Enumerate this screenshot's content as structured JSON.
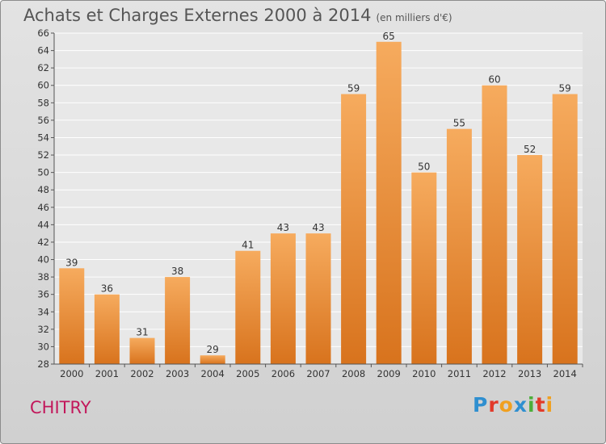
{
  "header": {
    "title": "Achats et Charges Externes 2000 à 2014",
    "subtitle": "(en milliers d'€)"
  },
  "footer": {
    "town": "CHITRY",
    "logo_letters": [
      "P",
      "r",
      "o",
      "x",
      "i",
      "t",
      "i"
    ],
    "logo_colors": [
      "#2f8fd0",
      "#e23a2a",
      "#f0a020",
      "#2f8fd0",
      "#4cae3a",
      "#e23a2a",
      "#f0a020"
    ]
  },
  "colors": {
    "bar_top": "#f6ab5e",
    "bar_bottom": "#d8731d",
    "plot_bg_top": "#e8e8e8",
    "plot_bg_bottom": "#e8e8e8"
  },
  "chart_data": {
    "type": "bar",
    "categories": [
      "2000",
      "2001",
      "2002",
      "2003",
      "2004",
      "2005",
      "2006",
      "2007",
      "2008",
      "2009",
      "2010",
      "2011",
      "2012",
      "2013",
      "2014"
    ],
    "values": [
      39,
      36,
      31,
      38,
      29,
      41,
      43,
      43,
      59,
      65,
      50,
      55,
      60,
      52,
      59
    ],
    "value_labels": [
      "39",
      "36",
      "31",
      "38",
      "29",
      "41",
      "43",
      "43",
      "59",
      "65",
      "50",
      "55",
      "60",
      "52",
      "59"
    ],
    "ylim": [
      28,
      66
    ],
    "yticks": [
      "28",
      "30",
      "32",
      "34",
      "36",
      "38",
      "40",
      "42",
      "44",
      "46",
      "48",
      "50",
      "52",
      "54",
      "56",
      "58",
      "60",
      "62",
      "64",
      "66"
    ],
    "ytick_values": [
      28,
      30,
      32,
      34,
      36,
      38,
      40,
      42,
      44,
      46,
      48,
      50,
      52,
      54,
      56,
      58,
      60,
      62,
      64,
      66
    ],
    "grid": true,
    "xlabel": "",
    "ylabel": ""
  }
}
